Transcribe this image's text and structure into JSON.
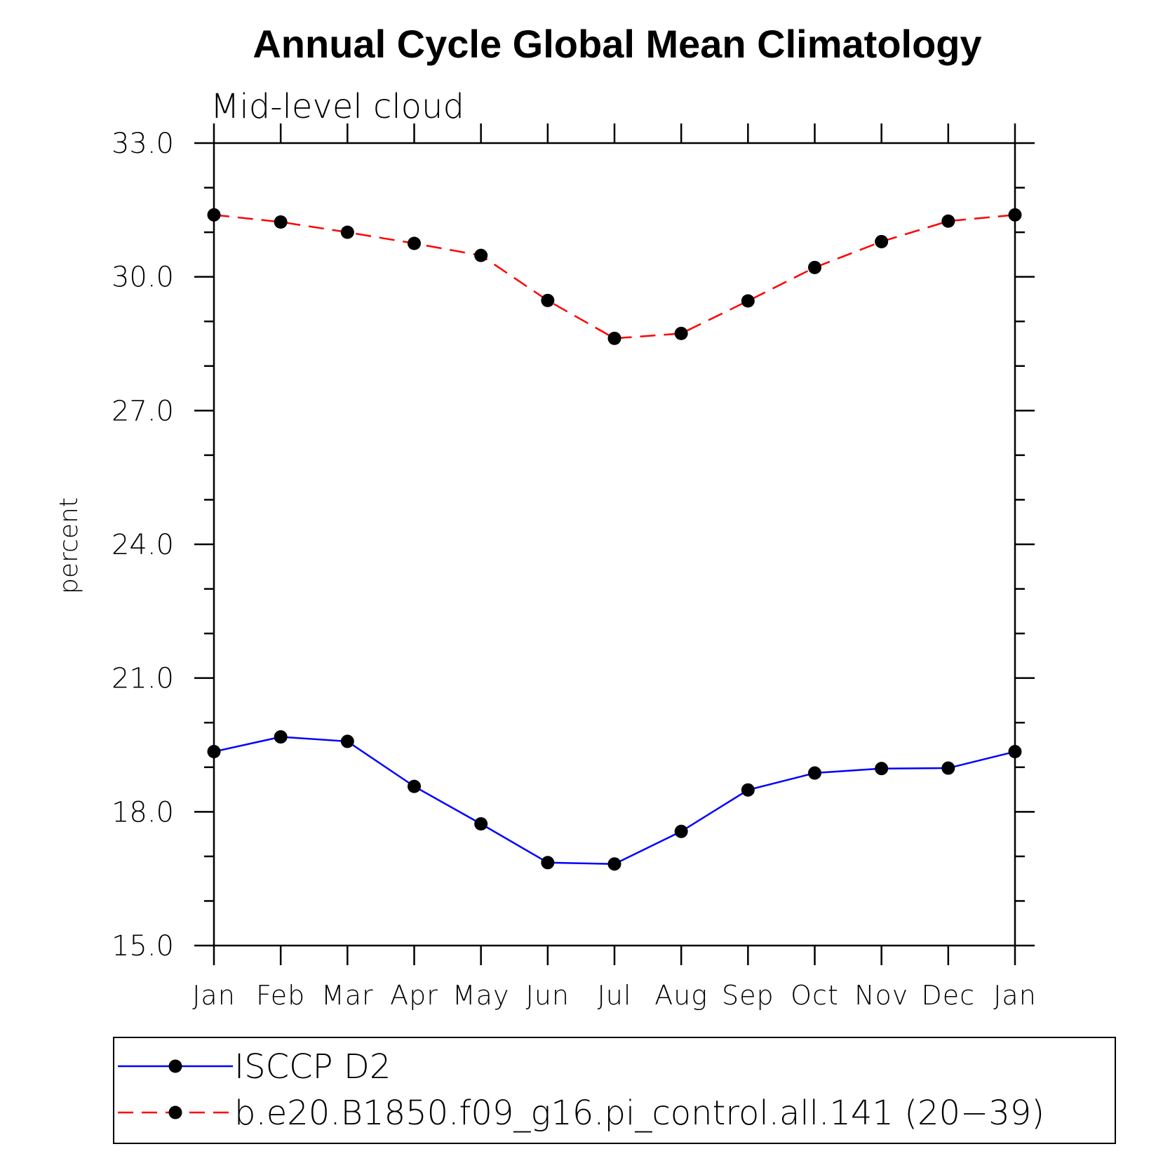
{
  "chart_data": {
    "type": "line",
    "title": "Annual Cycle Global Mean Climatology",
    "subtitle": "Mid-level cloud",
    "xlabel": "",
    "ylabel": "percent",
    "ylim": [
      15.0,
      33.0
    ],
    "yticks": [
      "15.0",
      "18.0",
      "21.0",
      "24.0",
      "27.0",
      "30.0",
      "33.0"
    ],
    "ytick_values": [
      15,
      18,
      21,
      24,
      27,
      30,
      33
    ],
    "yminor_step": 1,
    "categories": [
      "Jan",
      "Feb",
      "Mar",
      "Apr",
      "May",
      "Jun",
      "Jul",
      "Aug",
      "Sep",
      "Oct",
      "Nov",
      "Dec",
      "Jan"
    ],
    "grid": false,
    "legend_position": "bottom",
    "series": [
      {
        "name": "ISCCP D2",
        "color": "#0000ff",
        "dash": "solid",
        "marker": "filled-circle",
        "values": [
          19.35,
          19.68,
          19.58,
          18.57,
          17.73,
          16.86,
          16.83,
          17.56,
          18.49,
          18.87,
          18.97,
          18.98,
          19.35
        ]
      },
      {
        "name": "b.e20.B1850.f09_g16.pi_control.all.141 (20−39)",
        "color": "#ff0000",
        "dash": "dashed",
        "marker": "filled-circle",
        "values": [
          31.39,
          31.23,
          31.0,
          30.75,
          30.48,
          29.47,
          28.62,
          28.73,
          29.46,
          30.21,
          30.79,
          31.25,
          31.39
        ]
      }
    ]
  }
}
